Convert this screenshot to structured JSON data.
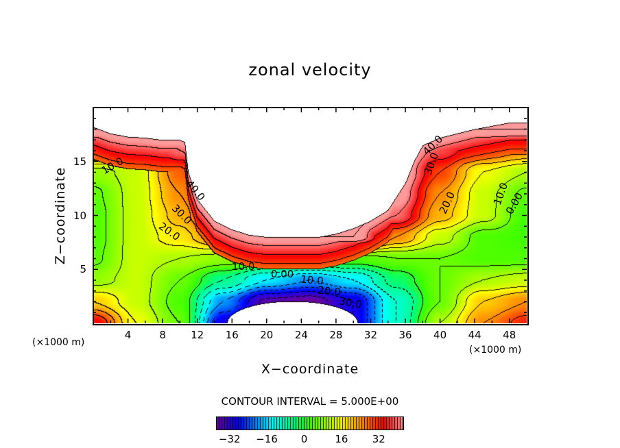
{
  "chart_data": {
    "type": "heatmap",
    "subtype": "filled-contour",
    "title": "zonal velocity",
    "xlabel": "X−coordinate",
    "ylabel": "Z−coordinate",
    "x_unit_left": "(×1000 m)",
    "x_unit_right": "(×1000 m)",
    "xlim": [
      0,
      50
    ],
    "ylim": [
      0,
      20
    ],
    "xticks": [
      4,
      8,
      12,
      16,
      20,
      24,
      28,
      32,
      36,
      40,
      44,
      48
    ],
    "yticks": [
      5,
      10,
      15
    ],
    "contour_interval_text": "CONTOUR INTERVAL = 5.000E+00",
    "contour_interval": 5,
    "colorbar": {
      "range": [
        -37.5,
        42.5
      ],
      "ticks": [
        -32,
        -16,
        0,
        16,
        32
      ],
      "tick_labels": [
        "−32",
        "−16",
        "0",
        "16",
        "32"
      ],
      "colors": [
        {
          "v": -37.5,
          "c": "#6a00a0"
        },
        {
          "v": -28,
          "c": "#0000ff"
        },
        {
          "v": -14,
          "c": "#00ffff"
        },
        {
          "v": -4,
          "c": "#00ff80"
        },
        {
          "v": 2,
          "c": "#40ff00"
        },
        {
          "v": 16,
          "c": "#ffff00"
        },
        {
          "v": 26,
          "c": "#ff8000"
        },
        {
          "v": 34,
          "c": "#ff0000"
        },
        {
          "v": 42.5,
          "c": "#ff9a9a"
        }
      ]
    },
    "grid": {
      "x": [
        0,
        5,
        10,
        15,
        20,
        25,
        30,
        35,
        40,
        45,
        50
      ],
      "z": [
        0,
        2,
        4,
        6,
        8,
        10,
        12,
        14,
        16,
        18,
        20
      ],
      "values": [
        [
          35,
          15,
          5,
          -30,
          -40,
          -40,
          -30,
          -10,
          10,
          25,
          32
        ],
        [
          20,
          12,
          3,
          -20,
          -36,
          -38,
          -30,
          -10,
          5,
          20,
          25
        ],
        [
          8,
          12,
          5,
          -5,
          -15,
          -20,
          -15,
          -3,
          5,
          10,
          12
        ],
        [
          4,
          12,
          10,
          8,
          5,
          3,
          3,
          5,
          5,
          3,
          3
        ],
        [
          3,
          12,
          18,
          28,
          45,
          45,
          45,
          25,
          12,
          3,
          2
        ],
        [
          3,
          12,
          22,
          42,
          48,
          48,
          48,
          40,
          22,
          12,
          2
        ],
        [
          4,
          12,
          25,
          48,
          48,
          48,
          48,
          45,
          25,
          12,
          4
        ],
        [
          8,
          12,
          28,
          48,
          48,
          48,
          48,
          48,
          30,
          15,
          10
        ],
        [
          30,
          30,
          40,
          48,
          48,
          48,
          48,
          48,
          38,
          30,
          25
        ],
        [
          45,
          45,
          45,
          48,
          48,
          48,
          48,
          48,
          45,
          45,
          45
        ],
        [
          48,
          48,
          48,
          48,
          48,
          48,
          48,
          48,
          48,
          48,
          48
        ]
      ]
    },
    "top_boundary": {
      "x": [
        0,
        2,
        4,
        6,
        8,
        10,
        10.6,
        11,
        12,
        14,
        16,
        18,
        20,
        22,
        24,
        26,
        28,
        30,
        32,
        34,
        36,
        37,
        38,
        40,
        42,
        44,
        46,
        48,
        50
      ],
      "z": [
        18.2,
        17.6,
        17.3,
        17.2,
        17.0,
        17.0,
        16.8,
        14,
        11.5,
        9.5,
        8.7,
        8.2,
        8.0,
        8.0,
        8.0,
        8.0,
        8.3,
        8.8,
        9.5,
        10.5,
        13,
        15,
        16.5,
        17.2,
        17.6,
        18,
        18.3,
        18.6,
        18.6
      ]
    },
    "bottom_hole": {
      "center_x": 23,
      "half_width": 7.5,
      "height": 2.0
    },
    "contour_labels": [
      {
        "text": "10.0",
        "x": 2.2,
        "z": 14.6,
        "angle": -30
      },
      {
        "text": "40.0",
        "x": 11.8,
        "z": 12.3,
        "angle": 50
      },
      {
        "text": "30.0",
        "x": 10.2,
        "z": 10.1,
        "angle": 45
      },
      {
        "text": "20.0",
        "x": 8.8,
        "z": 8.5,
        "angle": 35
      },
      {
        "text": "10.0",
        "x": 17.3,
        "z": 5.3,
        "angle": 0
      },
      {
        "text": "0.00",
        "x": 21.8,
        "z": 4.6,
        "angle": 0
      },
      {
        "text": "10.0",
        "x": 25.2,
        "z": 4.0,
        "angle": 5
      },
      {
        "text": "20.0",
        "x": 27.2,
        "z": 3.0,
        "angle": 5
      },
      {
        "text": "30.0",
        "x": 29.7,
        "z": 1.9,
        "angle": 10
      },
      {
        "text": "40.0",
        "x": 39.2,
        "z": 16.5,
        "angle": -45
      },
      {
        "text": "30.0",
        "x": 39.0,
        "z": 14.8,
        "angle": -70
      },
      {
        "text": "20.0",
        "x": 40.8,
        "z": 11.2,
        "angle": -65
      },
      {
        "text": "10.0",
        "x": 47.0,
        "z": 12.0,
        "angle": -70
      },
      {
        "text": "0.00",
        "x": 48.6,
        "z": 11.1,
        "angle": -60
      }
    ]
  }
}
